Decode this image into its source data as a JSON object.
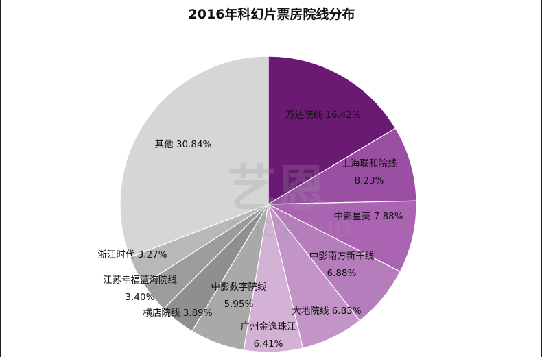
{
  "chart_data": {
    "type": "pie",
    "title": "2016年科幻片票房院线分布",
    "slices": [
      {
        "name": "万达院线",
        "value": 16.42,
        "display": "16.42%",
        "color": "#6b1a73"
      },
      {
        "name": "上海联和院线",
        "value": 8.23,
        "display": "8.23%",
        "color": "#9b4fa3"
      },
      {
        "name": "中影星美",
        "value": 7.88,
        "display": "7.88%",
        "color": "#aa64b2"
      },
      {
        "name": "中影南方新干线",
        "value": 6.88,
        "display": "6.88%",
        "color": "#b67dbd"
      },
      {
        "name": "大地院线",
        "value": 6.83,
        "display": "6.83%",
        "color": "#c294c7"
      },
      {
        "name": "广州金逸珠江",
        "value": 6.41,
        "display": "6.41%",
        "color": "#d4b2d6"
      },
      {
        "name": "中影数字院线",
        "value": 5.95,
        "display": "5.95%",
        "color": "#a9a9a9"
      },
      {
        "name": "横店院线",
        "value": 3.89,
        "display": "3.89%",
        "color": "#8f8f8f"
      },
      {
        "name": "江苏幸福蓝海院线",
        "value": 3.4,
        "display": "3.40%",
        "color": "#9c9c9c"
      },
      {
        "name": "浙江时代",
        "value": 3.27,
        "display": "3.27%",
        "color": "#b8b8b8"
      },
      {
        "name": "其他",
        "value": 30.84,
        "display": "30.84%",
        "color": "#d6d6d6"
      }
    ]
  },
  "watermark": {
    "cn": "艺恩",
    "en": "entgroup"
  }
}
